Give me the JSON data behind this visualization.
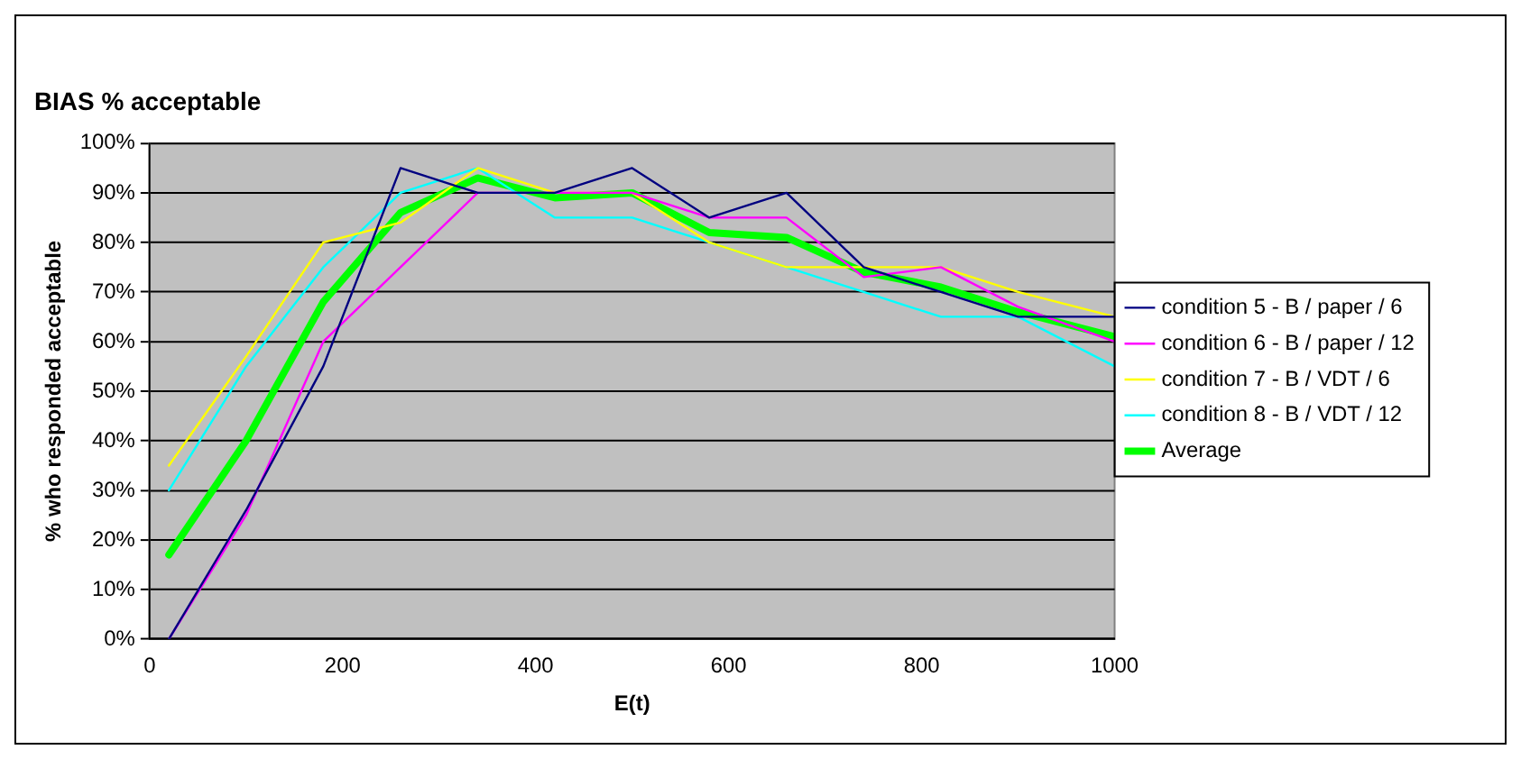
{
  "chart_data": {
    "type": "line",
    "title": "BIAS % acceptable",
    "xlabel": "E(t)",
    "ylabel": "% who responded acceptable",
    "x": [
      20,
      100,
      180,
      260,
      340,
      420,
      500,
      580,
      660,
      740,
      820,
      900,
      1000
    ],
    "series": [
      {
        "name": "condition 5 - B / paper / 6",
        "color": "#000080",
        "values": [
          0,
          26,
          55,
          95,
          90,
          90,
          95,
          85,
          90,
          75,
          70,
          65,
          65
        ]
      },
      {
        "name": "condition 6 - B / paper / 12",
        "color": "#ff00ff",
        "values": [
          0,
          25,
          60,
          75,
          90,
          90,
          90,
          85,
          85,
          73,
          75,
          67,
          60
        ]
      },
      {
        "name": "condition 7 - B / VDT / 6",
        "color": "#ffff00",
        "values": [
          35,
          57,
          80,
          84,
          95,
          90,
          90,
          80,
          75,
          75,
          75,
          70,
          65
        ]
      },
      {
        "name": "condition 8 - B / VDT / 12",
        "color": "#00ffff",
        "values": [
          30,
          55,
          75,
          90,
          95,
          85,
          85,
          80,
          75,
          70,
          65,
          65,
          55
        ]
      },
      {
        "name": "Average",
        "color": "#00ff00",
        "values": [
          17,
          40,
          68,
          86,
          93,
          89,
          90,
          82,
          81,
          74,
          71,
          66,
          61
        ]
      }
    ],
    "xlim": [
      0,
      1000
    ],
    "xticks": [
      0,
      200,
      400,
      600,
      800,
      1000
    ],
    "ylim": [
      0,
      100
    ],
    "yticks": [
      {
        "value": 0,
        "label": "0%"
      },
      {
        "value": 10,
        "label": "10%"
      },
      {
        "value": 20,
        "label": "20%"
      },
      {
        "value": 30,
        "label": "30%"
      },
      {
        "value": 40,
        "label": "40%"
      },
      {
        "value": 50,
        "label": "50%"
      },
      {
        "value": 60,
        "label": "60%"
      },
      {
        "value": 70,
        "label": "70%"
      },
      {
        "value": 80,
        "label": "80%"
      },
      {
        "value": 90,
        "label": "90%"
      },
      {
        "value": 100,
        "label": "100%"
      }
    ],
    "grid": "y",
    "legend": "right",
    "marker": "none",
    "line_style": "solid"
  }
}
